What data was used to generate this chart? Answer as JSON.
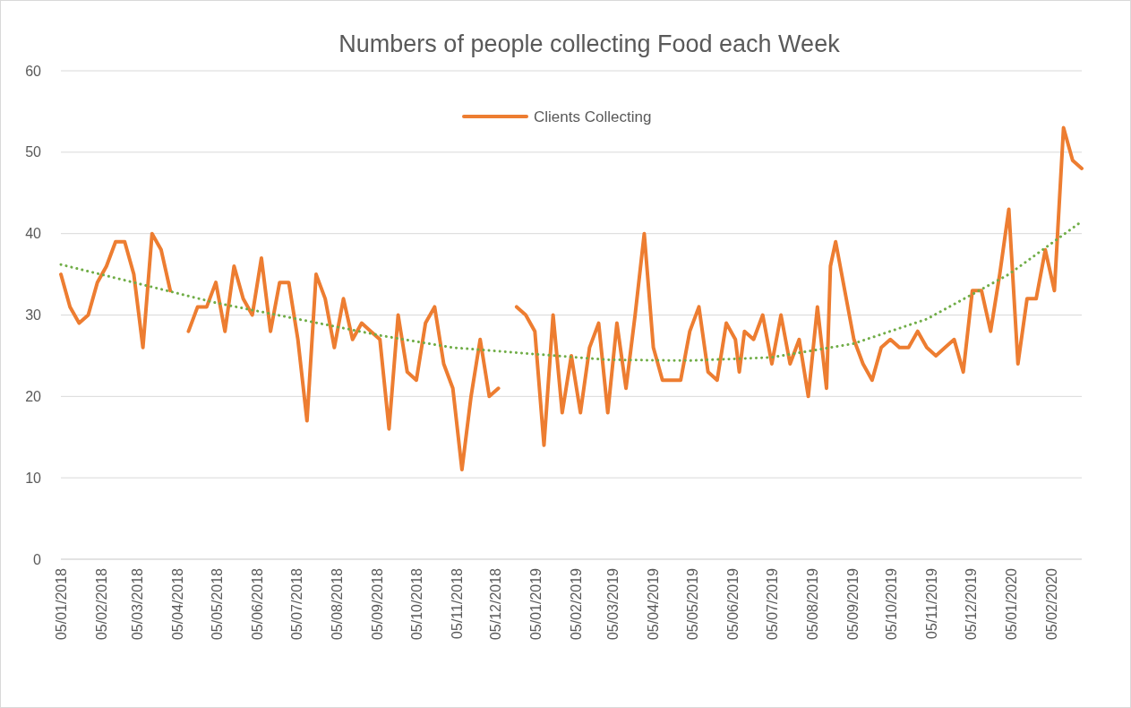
{
  "chart_data": {
    "type": "line",
    "title": "Numbers of people collecting Food each Week",
    "xlim": [
      "2018-01-05",
      "2020-02-28"
    ],
    "xticks": [
      {
        "value": "2018-01-05",
        "label": "05/01/2018"
      },
      {
        "value": "2018-02-05",
        "label": "05/02/2018"
      },
      {
        "value": "2018-03-05",
        "label": "05/03/2018"
      },
      {
        "value": "2018-04-05",
        "label": "05/04/2018"
      },
      {
        "value": "2018-05-05",
        "label": "05/05/2018"
      },
      {
        "value": "2018-06-05",
        "label": "05/06/2018"
      },
      {
        "value": "2018-07-05",
        "label": "05/07/2018"
      },
      {
        "value": "2018-08-05",
        "label": "05/08/2018"
      },
      {
        "value": "2018-09-05",
        "label": "05/09/2018"
      },
      {
        "value": "2018-10-05",
        "label": "05/10/2018"
      },
      {
        "value": "2018-11-05",
        "label": "05/11/2018"
      },
      {
        "value": "2018-12-05",
        "label": "05/12/2018"
      },
      {
        "value": "2019-01-05",
        "label": "05/01/2019"
      },
      {
        "value": "2019-02-05",
        "label": "05/02/2019"
      },
      {
        "value": "2019-03-05",
        "label": "05/03/2019"
      },
      {
        "value": "2019-04-05",
        "label": "05/04/2019"
      },
      {
        "value": "2019-05-05",
        "label": "05/05/2019"
      },
      {
        "value": "2019-06-05",
        "label": "05/06/2019"
      },
      {
        "value": "2019-07-05",
        "label": "05/07/2019"
      },
      {
        "value": "2019-08-05",
        "label": "05/08/2019"
      },
      {
        "value": "2019-09-05",
        "label": "05/09/2019"
      },
      {
        "value": "2019-10-05",
        "label": "05/10/2019"
      },
      {
        "value": "2019-11-05",
        "label": "05/11/2019"
      },
      {
        "value": "2019-12-05",
        "label": "05/12/2019"
      },
      {
        "value": "2020-01-05",
        "label": "05/01/2020"
      },
      {
        "value": "2020-02-05",
        "label": "05/02/2020"
      }
    ],
    "ylim": [
      0,
      60
    ],
    "yticks": [
      0,
      10,
      20,
      30,
      40,
      50,
      60
    ],
    "grid": "y",
    "legend": "top",
    "series": [
      {
        "name": "Clients Collecting",
        "color": "#ed7d31",
        "x": [
          "2018-01-05",
          "2018-01-12",
          "2018-01-19",
          "2018-01-26",
          "2018-02-02",
          "2018-02-09",
          "2018-02-16",
          "2018-02-23",
          "2018-03-02",
          "2018-03-09",
          "2018-03-16",
          "2018-03-23",
          "2018-03-30",
          "2018-04-06",
          "2018-04-13",
          "2018-04-20",
          "2018-04-27",
          "2018-05-04",
          "2018-05-11",
          "2018-05-18",
          "2018-05-25",
          "2018-06-01",
          "2018-06-08",
          "2018-06-15",
          "2018-06-22",
          "2018-06-29",
          "2018-07-06",
          "2018-07-13",
          "2018-07-20",
          "2018-07-27",
          "2018-08-03",
          "2018-08-10",
          "2018-08-17",
          "2018-08-24",
          "2018-08-31",
          "2018-09-07",
          "2018-09-14",
          "2018-09-21",
          "2018-09-28",
          "2018-10-05",
          "2018-10-12",
          "2018-10-19",
          "2018-10-26",
          "2018-11-02",
          "2018-11-09",
          "2018-11-16",
          "2018-11-23",
          "2018-11-30",
          "2018-12-07",
          "2018-12-14",
          "2018-12-21",
          "2018-12-28",
          "2019-01-04",
          "2019-01-11",
          "2019-01-18",
          "2019-01-25",
          "2019-02-01",
          "2019-02-08",
          "2019-02-15",
          "2019-02-22",
          "2019-03-01",
          "2019-03-08",
          "2019-03-15",
          "2019-03-22",
          "2019-03-29",
          "2019-04-05",
          "2019-04-12",
          "2019-04-19",
          "2019-04-26",
          "2019-05-03",
          "2019-05-10",
          "2019-05-17",
          "2019-05-24",
          "2019-05-31",
          "2019-06-07",
          "2019-06-10",
          "2019-06-14",
          "2019-06-21",
          "2019-06-28",
          "2019-07-05",
          "2019-07-12",
          "2019-07-19",
          "2019-07-26",
          "2019-08-02",
          "2019-08-09",
          "2019-08-16",
          "2019-08-19",
          "2019-08-23",
          "2019-08-30",
          "2019-09-06",
          "2019-09-13",
          "2019-09-20",
          "2019-09-27",
          "2019-10-04",
          "2019-10-11",
          "2019-10-18",
          "2019-10-25",
          "2019-11-01",
          "2019-11-08",
          "2019-11-15",
          "2019-11-22",
          "2019-11-29",
          "2019-12-06",
          "2019-12-13",
          "2019-12-20",
          "2019-12-27",
          "2020-01-03",
          "2020-01-10",
          "2020-01-17",
          "2020-01-24",
          "2020-01-31",
          "2020-02-07",
          "2020-02-14",
          "2020-02-21",
          "2020-02-28"
        ],
        "values": [
          35,
          31,
          29,
          30,
          34,
          36,
          39,
          39,
          35,
          26,
          40,
          38,
          33,
          null,
          28,
          31,
          31,
          34,
          28,
          36,
          32,
          30,
          37,
          28,
          34,
          34,
          27,
          17,
          35,
          32,
          26,
          32,
          27,
          29,
          28,
          27,
          16,
          30,
          23,
          22,
          29,
          31,
          24,
          21,
          11,
          20,
          27,
          20,
          21,
          null,
          31,
          30,
          28,
          14,
          30,
          18,
          25,
          18,
          26,
          29,
          18,
          29,
          21,
          30,
          40,
          26,
          22,
          22,
          22,
          28,
          31,
          23,
          22,
          29,
          27,
          23,
          28,
          27,
          30,
          24,
          30,
          24,
          27,
          20,
          31,
          21,
          36,
          39,
          33,
          27,
          24,
          22,
          26,
          27,
          26,
          26,
          28,
          26,
          25,
          26,
          27,
          23,
          33,
          33,
          28,
          35,
          43,
          24,
          32,
          32,
          38,
          33,
          53,
          49,
          48
        ]
      },
      {
        "type": "line",
        "color": "#70ad47",
        "line_style": "dotted",
        "x": [
          "2018-01-05",
          "2018-03-02",
          "2018-05-04",
          "2018-07-06",
          "2018-09-07",
          "2018-11-02",
          "2019-01-04",
          "2019-03-01",
          "2019-05-03",
          "2019-07-05",
          "2019-09-06",
          "2019-11-01",
          "2020-01-03",
          "2020-02-28"
        ],
        "values": [
          36.2,
          34,
          31.5,
          29.5,
          27.5,
          26,
          25.2,
          24.5,
          24.4,
          24.8,
          26.5,
          29.5,
          35,
          41.5
        ]
      }
    ]
  }
}
